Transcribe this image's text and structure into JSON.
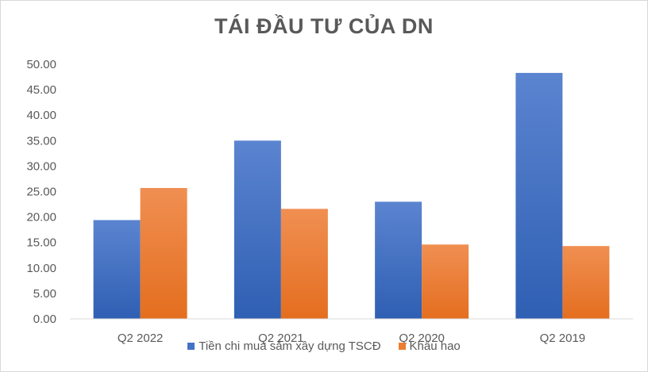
{
  "chart_data": {
    "type": "bar",
    "title": "TÁI ĐẦU TƯ CỦA DN",
    "categories": [
      "Q2 2022",
      "Q2 2021",
      "Q2 2020",
      "Q2 2019"
    ],
    "series": [
      {
        "name": "Tiền chi mua sắm xây dựng TSCĐ",
        "values": [
          19.4,
          35.0,
          23.0,
          48.3
        ],
        "color": "#4472c4"
      },
      {
        "name": "Khấu hao",
        "values": [
          25.7,
          21.6,
          14.6,
          14.3
        ],
        "color": "#ed7d31"
      }
    ],
    "ylim": [
      0,
      50
    ],
    "yticks": [
      "0.00",
      "5.00",
      "10.00",
      "15.00",
      "20.00",
      "25.00",
      "30.00",
      "35.00",
      "40.00",
      "45.00",
      "50.00"
    ],
    "grid": false,
    "legend_position": "bottom"
  }
}
